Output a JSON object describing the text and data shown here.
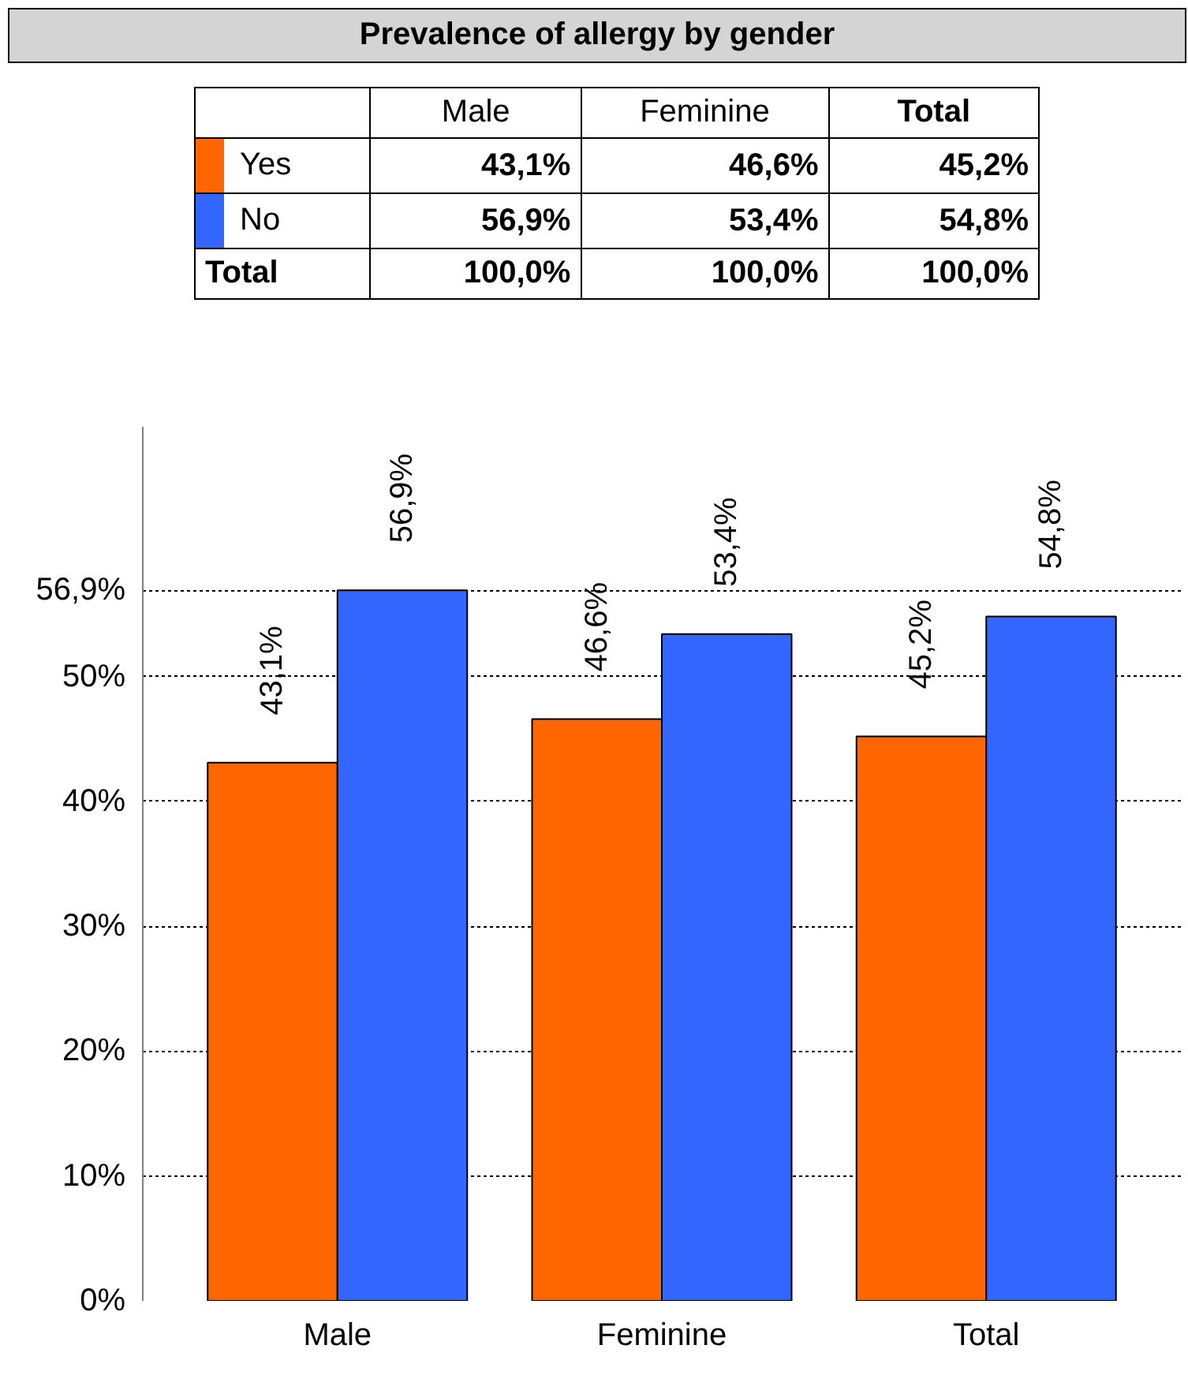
{
  "chart_data": {
    "type": "bar",
    "title": "Prevalence of allergy by gender",
    "categories": [
      "Male",
      "Feminine",
      "Total"
    ],
    "series": [
      {
        "name": "Yes",
        "color": "#ff6600",
        "values": [
          43.1,
          46.6,
          45.2
        ],
        "value_labels": [
          "43,1%",
          "46,6%",
          "45,2%"
        ]
      },
      {
        "name": "No",
        "color": "#3366ff",
        "values": [
          56.9,
          53.4,
          54.8
        ],
        "value_labels": [
          "56,9%",
          "53,4%",
          "54,8%"
        ]
      }
    ],
    "annotations": [
      "Total",
      "100,0%",
      "100,0%",
      "100,0%"
    ],
    "legend": "top",
    "ylim": [
      0,
      70
    ],
    "yticks": [
      {
        "value": 0,
        "label": "0%"
      },
      {
        "value": 10,
        "label": "10%"
      },
      {
        "value": 20,
        "label": "20%"
      },
      {
        "value": 30,
        "label": "30%"
      },
      {
        "value": 40,
        "label": "40%"
      },
      {
        "value": 50,
        "label": "50%"
      },
      {
        "value": 56.9,
        "label": "56,9%"
      }
    ],
    "grid": "y"
  }
}
